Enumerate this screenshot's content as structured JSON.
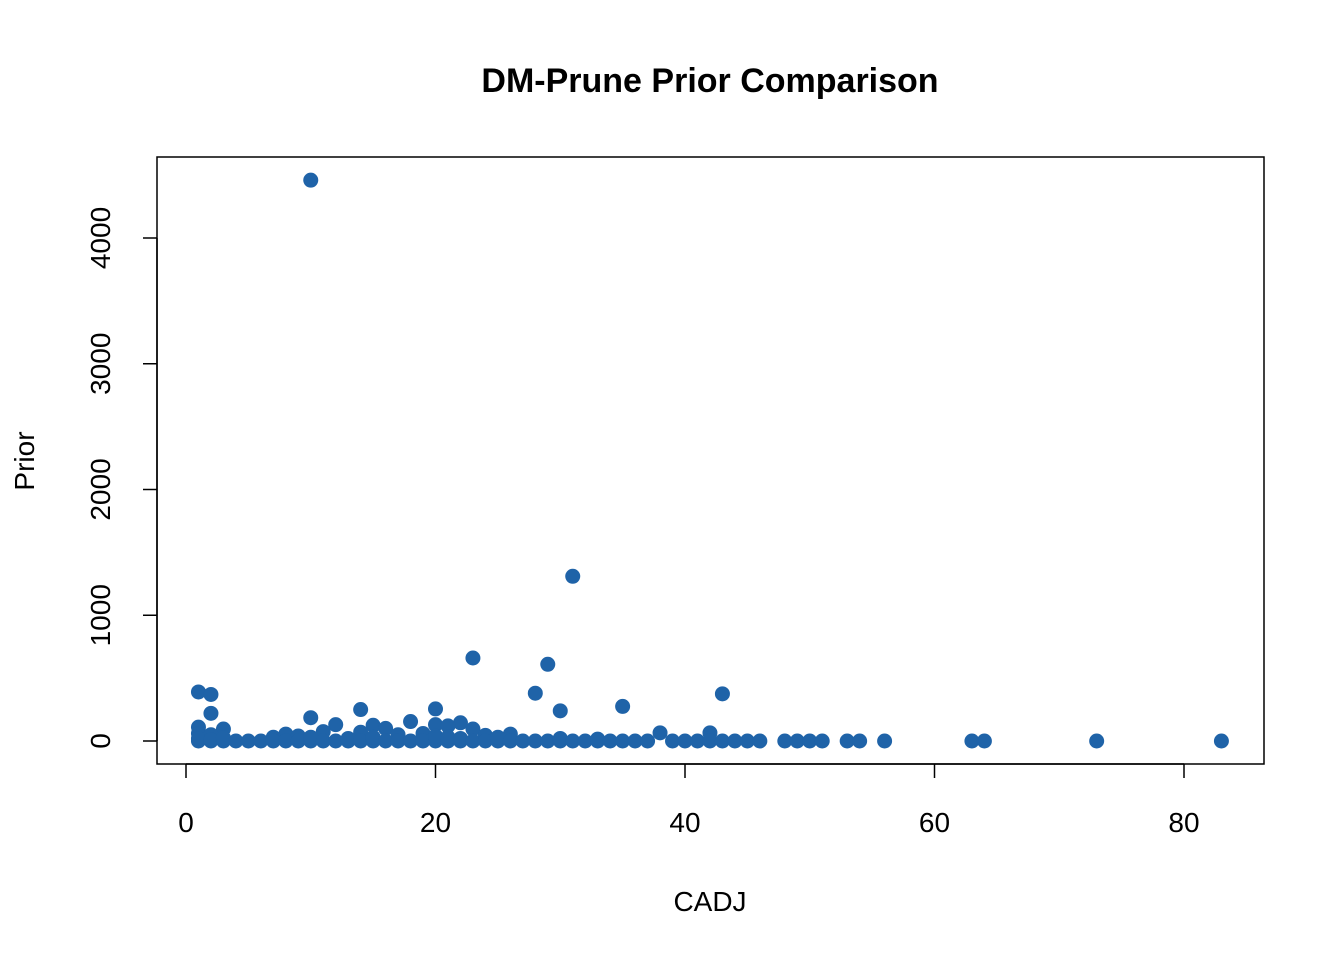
{
  "chart_data": {
    "type": "scatter",
    "title": "DM-Prune Prior Comparison",
    "xlabel": "CADJ",
    "ylabel": "Prior",
    "xlim": [
      0,
      85
    ],
    "ylim": [
      0,
      4500
    ],
    "xticks": [
      0,
      20,
      40,
      60,
      80
    ],
    "yticks": [
      0,
      1000,
      2000,
      3000,
      4000
    ],
    "grid": false,
    "legend": "none",
    "marker_color": "#1f63a8",
    "series": [
      {
        "points": [
          [
            10,
            4460
          ],
          [
            31,
            1310
          ],
          [
            23,
            660
          ],
          [
            29,
            610
          ],
          [
            1,
            390
          ],
          [
            2,
            370
          ],
          [
            28,
            380
          ],
          [
            43,
            375
          ],
          [
            35,
            275
          ],
          [
            14,
            250
          ],
          [
            20,
            255
          ],
          [
            30,
            240
          ],
          [
            2,
            220
          ],
          [
            10,
            185
          ],
          [
            18,
            155
          ],
          [
            22,
            145
          ],
          [
            12,
            130
          ],
          [
            15,
            125
          ],
          [
            20,
            130
          ],
          [
            21,
            120
          ],
          [
            1,
            110
          ],
          [
            3,
            95
          ],
          [
            16,
            100
          ],
          [
            23,
            95
          ],
          [
            11,
            75
          ],
          [
            14,
            70
          ],
          [
            38,
            65
          ],
          [
            42,
            65
          ],
          [
            1,
            60
          ],
          [
            2,
            50
          ],
          [
            8,
            55
          ],
          [
            17,
            50
          ],
          [
            19,
            60
          ],
          [
            24,
            45
          ],
          [
            26,
            55
          ],
          [
            9,
            40
          ],
          [
            7,
            30
          ],
          [
            1,
            0
          ],
          [
            1,
            20
          ],
          [
            2,
            0
          ],
          [
            2,
            10
          ],
          [
            3,
            0
          ],
          [
            3,
            25
          ],
          [
            4,
            0
          ],
          [
            5,
            0
          ],
          [
            6,
            0
          ],
          [
            7,
            0
          ],
          [
            8,
            0
          ],
          [
            9,
            0
          ],
          [
            10,
            0
          ],
          [
            10,
            30
          ],
          [
            11,
            0
          ],
          [
            12,
            0
          ],
          [
            13,
            0
          ],
          [
            13,
            20
          ],
          [
            14,
            0
          ],
          [
            15,
            0
          ],
          [
            15,
            30
          ],
          [
            16,
            0
          ],
          [
            17,
            0
          ],
          [
            18,
            0
          ],
          [
            19,
            0
          ],
          [
            20,
            0
          ],
          [
            20,
            40
          ],
          [
            21,
            0
          ],
          [
            21,
            30
          ],
          [
            22,
            0
          ],
          [
            22,
            20
          ],
          [
            23,
            0
          ],
          [
            24,
            0
          ],
          [
            25,
            0
          ],
          [
            25,
            30
          ],
          [
            26,
            0
          ],
          [
            27,
            0
          ],
          [
            28,
            0
          ],
          [
            29,
            0
          ],
          [
            30,
            0
          ],
          [
            30,
            20
          ],
          [
            31,
            0
          ],
          [
            32,
            0
          ],
          [
            33,
            0
          ],
          [
            33,
            15
          ],
          [
            34,
            0
          ],
          [
            35,
            0
          ],
          [
            36,
            0
          ],
          [
            37,
            0
          ],
          [
            39,
            0
          ],
          [
            40,
            0
          ],
          [
            41,
            0
          ],
          [
            42,
            0
          ],
          [
            43,
            0
          ],
          [
            44,
            0
          ],
          [
            45,
            0
          ],
          [
            46,
            0
          ],
          [
            48,
            0
          ],
          [
            49,
            0
          ],
          [
            50,
            0
          ],
          [
            51,
            0
          ],
          [
            53,
            0
          ],
          [
            54,
            0
          ],
          [
            56,
            0
          ],
          [
            63,
            0
          ],
          [
            64,
            0
          ],
          [
            73,
            0
          ],
          [
            83,
            0
          ]
        ]
      }
    ]
  }
}
